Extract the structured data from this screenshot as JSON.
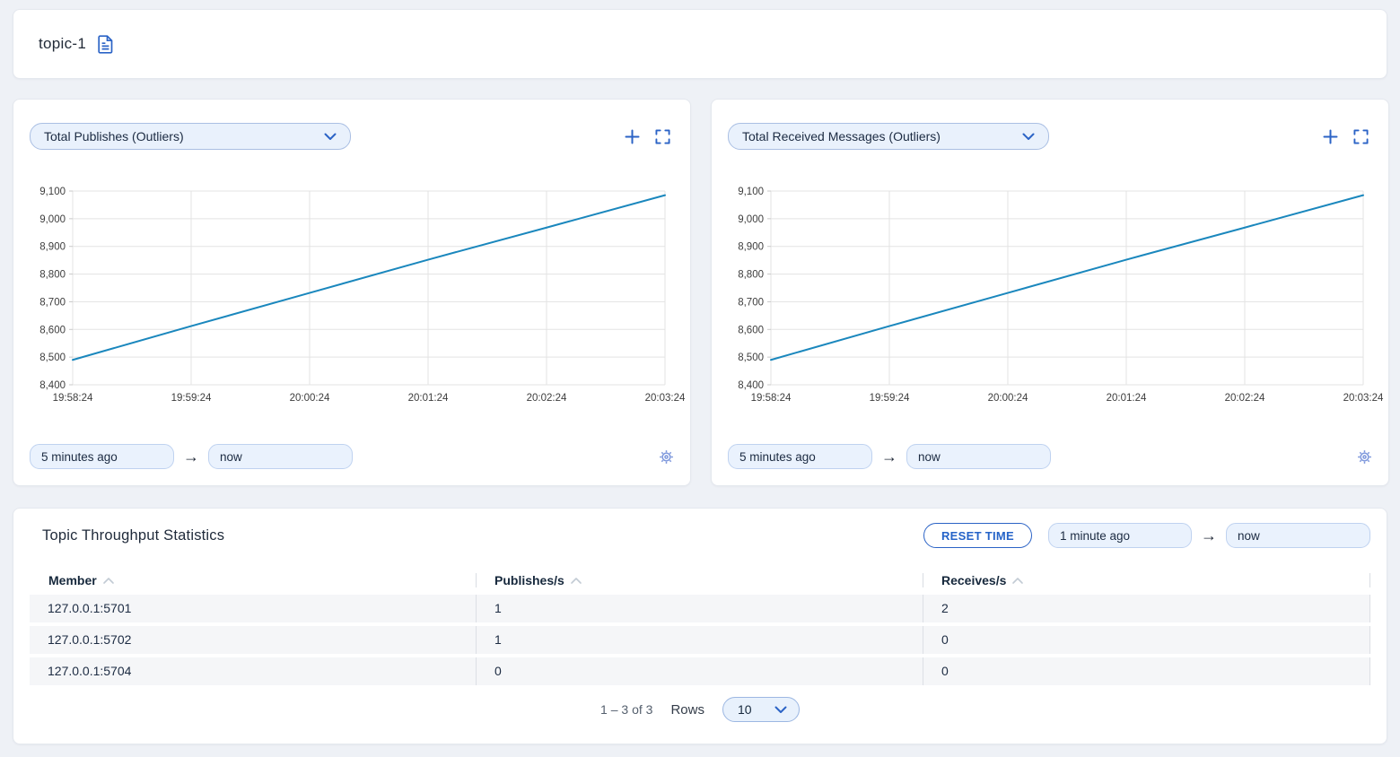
{
  "topbar": {
    "title": "topic-1"
  },
  "charts": [
    {
      "metric": "Total Publishes (Outliers)",
      "from": "5 minutes ago",
      "to": "now"
    },
    {
      "metric": "Total Received Messages (Outliers)",
      "from": "5 minutes ago",
      "to": "now"
    }
  ],
  "chart_data": [
    {
      "type": "line",
      "title": "Total Publishes (Outliers)",
      "x": [
        "19:58:24",
        "19:59:24",
        "20:00:24",
        "20:01:24",
        "20:02:24",
        "20:03:24"
      ],
      "series": [
        {
          "name": "Total Publishes",
          "values": [
            8490,
            8612,
            8732,
            8852,
            8968,
            9085
          ]
        }
      ],
      "ylim": [
        8400,
        9100
      ],
      "ytick_step": 100,
      "grid": true,
      "legend": false,
      "line_color": "#1a87bd"
    },
    {
      "type": "line",
      "title": "Total Received Messages (Outliers)",
      "x": [
        "19:58:24",
        "19:59:24",
        "20:00:24",
        "20:01:24",
        "20:02:24",
        "20:03:24"
      ],
      "series": [
        {
          "name": "Total Received Messages",
          "values": [
            8490,
            8612,
            8732,
            8852,
            8968,
            9085
          ]
        }
      ],
      "ylim": [
        8400,
        9100
      ],
      "ytick_step": 100,
      "grid": true,
      "legend": false,
      "line_color": "#1a87bd"
    }
  ],
  "stats": {
    "title": "Topic Throughput Statistics",
    "reset_label": "RESET TIME",
    "from": "1 minute ago",
    "to": "now",
    "columns": [
      "Member",
      "Publishes/s",
      "Receives/s"
    ],
    "rows": [
      [
        "127.0.0.1:5701",
        "1",
        "2"
      ],
      [
        "127.0.0.1:5702",
        "1",
        "0"
      ],
      [
        "127.0.0.1:5704",
        "0",
        "0"
      ]
    ],
    "pagination": {
      "range": "1 – 3 of 3",
      "rows_label": "Rows",
      "page_size": "10"
    }
  },
  "colors": {
    "accent": "#2b63c6",
    "line": "#1a87bd",
    "grid": "#e3e3e3",
    "page_bg": "#eef1f6",
    "input_bg": "#eaf2fd",
    "row_bg": "#f5f6f8"
  }
}
